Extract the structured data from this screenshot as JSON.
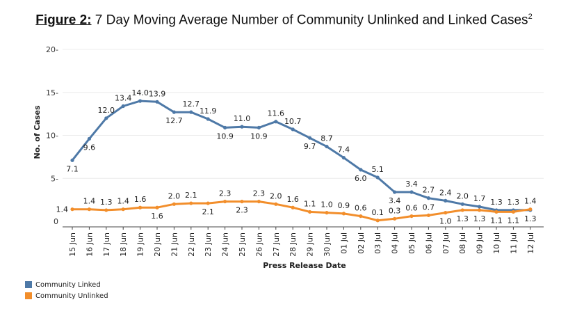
{
  "title": {
    "figure_label": "Figure 2:",
    "text": " 7 Day Moving Average Number of Community Unlinked and Linked Cases",
    "superscript": "2"
  },
  "chart_data": {
    "type": "line",
    "xlabel": "Press Release Date",
    "ylabel": "No. of Cases",
    "ylim": [
      0,
      20
    ],
    "yticks": [
      0,
      5,
      10,
      15,
      20
    ],
    "yticklabels": [
      "0",
      "5-",
      "10-",
      "15-",
      "20-"
    ],
    "grid": true,
    "legend_position": "bottom-left",
    "categories": [
      "15 Jun",
      "16 Jun",
      "17 Jun",
      "18 Jun",
      "19 Jun",
      "20 Jun",
      "21 Jun",
      "22 Jun",
      "23 Jun",
      "24 Jun",
      "25 Jun",
      "26 Jun",
      "27 Jun",
      "28 Jun",
      "29 Jun",
      "30 Jun",
      "01 Jul",
      "02 Jul",
      "03 Jul",
      "04 Jul",
      "05 Jul",
      "06 Jul",
      "07 Jul",
      "08 Jul",
      "09 Jul",
      "10 Jul",
      "11 Jul",
      "12 Jul"
    ],
    "series": [
      {
        "name": "Community Linked",
        "color": "#4e79a7",
        "values": [
          7.1,
          9.6,
          12.0,
          13.4,
          14.0,
          13.9,
          12.7,
          12.7,
          11.9,
          10.9,
          11.0,
          10.9,
          11.6,
          10.7,
          9.7,
          8.7,
          7.4,
          6.0,
          5.1,
          3.4,
          3.4,
          2.7,
          2.4,
          2.0,
          1.7,
          1.3,
          1.3,
          1.3
        ],
        "labels": [
          "7.1",
          "9.6",
          "12.0",
          "13.4",
          "14.0",
          "13.9",
          "12.7",
          "12.7",
          "11.9",
          "10.9",
          "11.0",
          "10.9",
          "11.6",
          "10.7",
          "9.7",
          "8.7",
          "7.4",
          "6.0",
          "5.1",
          "3.4",
          "3.4",
          "2.7",
          "2.4",
          "2.0",
          "1.7",
          "1.3",
          "1.3",
          "1.3"
        ],
        "label_pos": [
          "below",
          "below",
          "above",
          "above",
          "above",
          "above",
          "below",
          "above",
          "above",
          "below",
          "above",
          "below",
          "above",
          "above",
          "below",
          "above",
          "above",
          "below",
          "above",
          "below",
          "above",
          "above",
          "above",
          "above",
          "above",
          "above",
          "above",
          "below"
        ]
      },
      {
        "name": "Community Unlinked",
        "color": "#f28e2b",
        "values": [
          1.4,
          1.4,
          1.3,
          1.4,
          1.6,
          1.6,
          2.0,
          2.1,
          2.1,
          2.3,
          2.3,
          2.3,
          2.0,
          1.6,
          1.1,
          1.0,
          0.9,
          0.6,
          0.1,
          0.3,
          0.6,
          0.7,
          1.0,
          1.3,
          1.3,
          1.1,
          1.1,
          1.4
        ],
        "labels": [
          "1.4",
          "1.4",
          "1.3",
          "1.4",
          "1.6",
          "1.6",
          "2.0",
          "2.1",
          "2.1",
          "2.3",
          "2.3",
          "2.3",
          "2.0",
          "1.6",
          "1.1",
          "1.0",
          "0.9",
          "0.6",
          "0.1",
          "0.3",
          "0.6",
          "0.7",
          "1.0",
          "1.3",
          "1.3",
          "1.1",
          "1.1",
          "1.4"
        ],
        "label_pos": [
          "left",
          "above",
          "above",
          "above",
          "above",
          "below",
          "above",
          "above",
          "below",
          "above",
          "below",
          "above",
          "above",
          "above",
          "above",
          "above",
          "above",
          "above",
          "above",
          "above",
          "above",
          "above",
          "below",
          "below",
          "below",
          "below",
          "below",
          "above"
        ]
      }
    ]
  }
}
